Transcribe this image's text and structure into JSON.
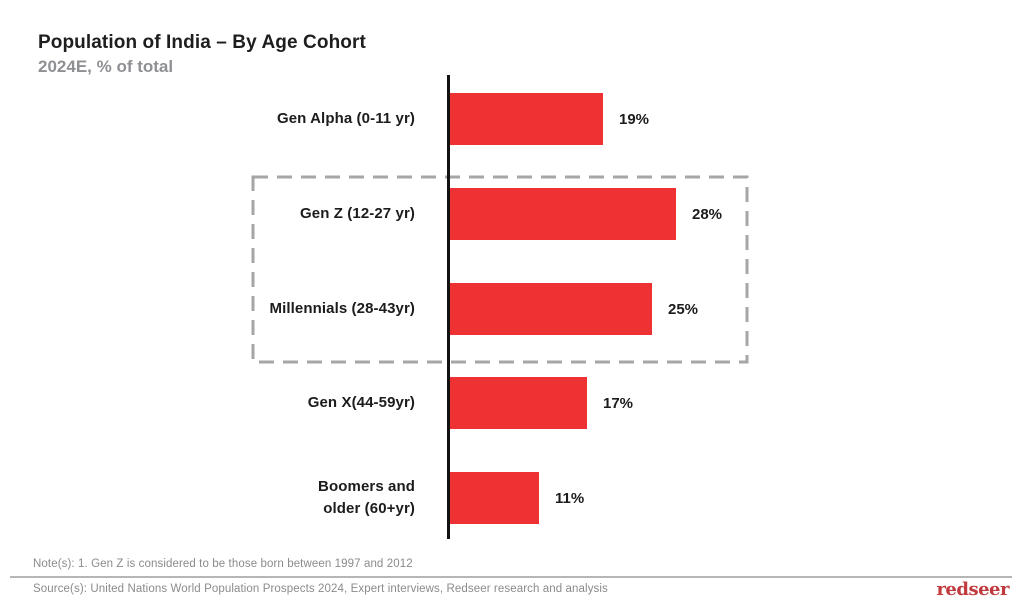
{
  "header": {
    "title": "Population of India – By Age Cohort",
    "subtitle": "2024E, % of total"
  },
  "chart_data": {
    "type": "bar",
    "orientation": "horizontal",
    "title": "Population of India – By Age Cohort",
    "subtitle": "2024E, % of total",
    "categories": [
      "Gen Alpha (0-11 yr)",
      "Gen Z (12-27 yr)",
      "Millennials (28-43yr)",
      "Gen X(44-59yr)",
      "Boomers and\nolder (60+yr)"
    ],
    "values": [
      19,
      28,
      25,
      17,
      11
    ],
    "value_labels": [
      "19%",
      "28%",
      "25%",
      "17%",
      "11%"
    ],
    "xlabel": "",
    "ylabel": "",
    "xlim": [
      0,
      30
    ],
    "grid": false,
    "legend": false,
    "bar_color": "#ee3133",
    "axis_color": "#121212",
    "highlight_box": {
      "categories_enclosed": [
        "Gen Z (12-27 yr)",
        "Millennials (28-43yr)"
      ],
      "style": "dashed",
      "color": "#a6a6a6"
    }
  },
  "footer": {
    "note": "Note(s): 1. Gen Z is considered to be those born between 1997 and 2012",
    "source": "Source(s): United Nations World Population Prospects 2024, Expert interviews, Redseer research and analysis",
    "logo_text": "redseer",
    "logo_color": "#c0393d"
  }
}
